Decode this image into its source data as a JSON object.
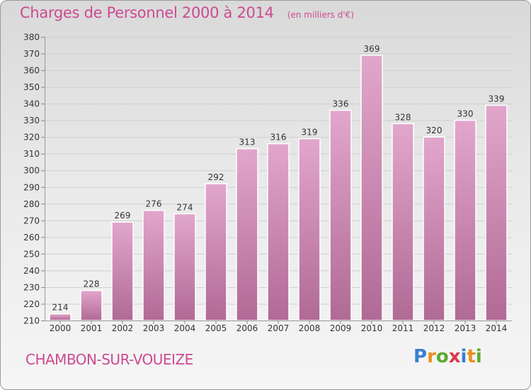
{
  "title": "Charges de Personnel 2000 à 2014",
  "unit_note": "(en milliers d'€)",
  "commune": "CHAMBON-SUR-VOUEIZE",
  "logo": {
    "letters": [
      "P",
      "r",
      "o",
      "x",
      "i",
      "t",
      "i"
    ],
    "colors": [
      "#3a7fd0",
      "#e8901e",
      "#5aab2e",
      "#d93a4a",
      "#3a7fd0",
      "#e8901e",
      "#5aab2e"
    ]
  },
  "colors": {
    "bar_top": "#e2a6cc",
    "bar_bottom": "#b06a95",
    "accent": "#cc4a91"
  },
  "chart_data": {
    "type": "bar",
    "categories": [
      "2000",
      "2001",
      "2002",
      "2003",
      "2004",
      "2005",
      "2006",
      "2007",
      "2008",
      "2009",
      "2010",
      "2011",
      "2012",
      "2013",
      "2014"
    ],
    "values": [
      214,
      228,
      269,
      276,
      274,
      292,
      313,
      316,
      319,
      336,
      369,
      328,
      320,
      330,
      339
    ],
    "ylim": [
      210,
      380
    ],
    "yticks": [
      210,
      220,
      230,
      240,
      250,
      260,
      270,
      280,
      290,
      300,
      310,
      320,
      330,
      340,
      350,
      360,
      370,
      380
    ],
    "grid": true,
    "legend": "none"
  }
}
